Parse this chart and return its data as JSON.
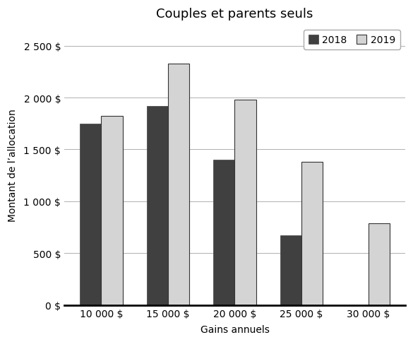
{
  "title": "Couples et parents seuls",
  "categories": [
    "10 000 $",
    "15 000 $",
    "20 000 $",
    "25 000 $",
    "30 000 $"
  ],
  "values_2018": [
    1750,
    1920,
    1400,
    670,
    0
  ],
  "values_2019": [
    1820,
    2330,
    1980,
    1380,
    790
  ],
  "color_2018": "#404040",
  "color_2019": "#d4d4d4",
  "edge_2019": "#333333",
  "ylabel": "Montant de l’allocation",
  "xlabel": "Gains annuels",
  "legend_2018": "2018",
  "legend_2019": "2019",
  "ylim": [
    0,
    2700
  ],
  "yticks": [
    0,
    500,
    1000,
    1500,
    2000,
    2500
  ],
  "bar_width": 0.32,
  "figsize": [
    5.85,
    4.85
  ],
  "dpi": 100,
  "title_fontsize": 13,
  "label_fontsize": 10,
  "tick_fontsize": 10,
  "legend_fontsize": 10
}
